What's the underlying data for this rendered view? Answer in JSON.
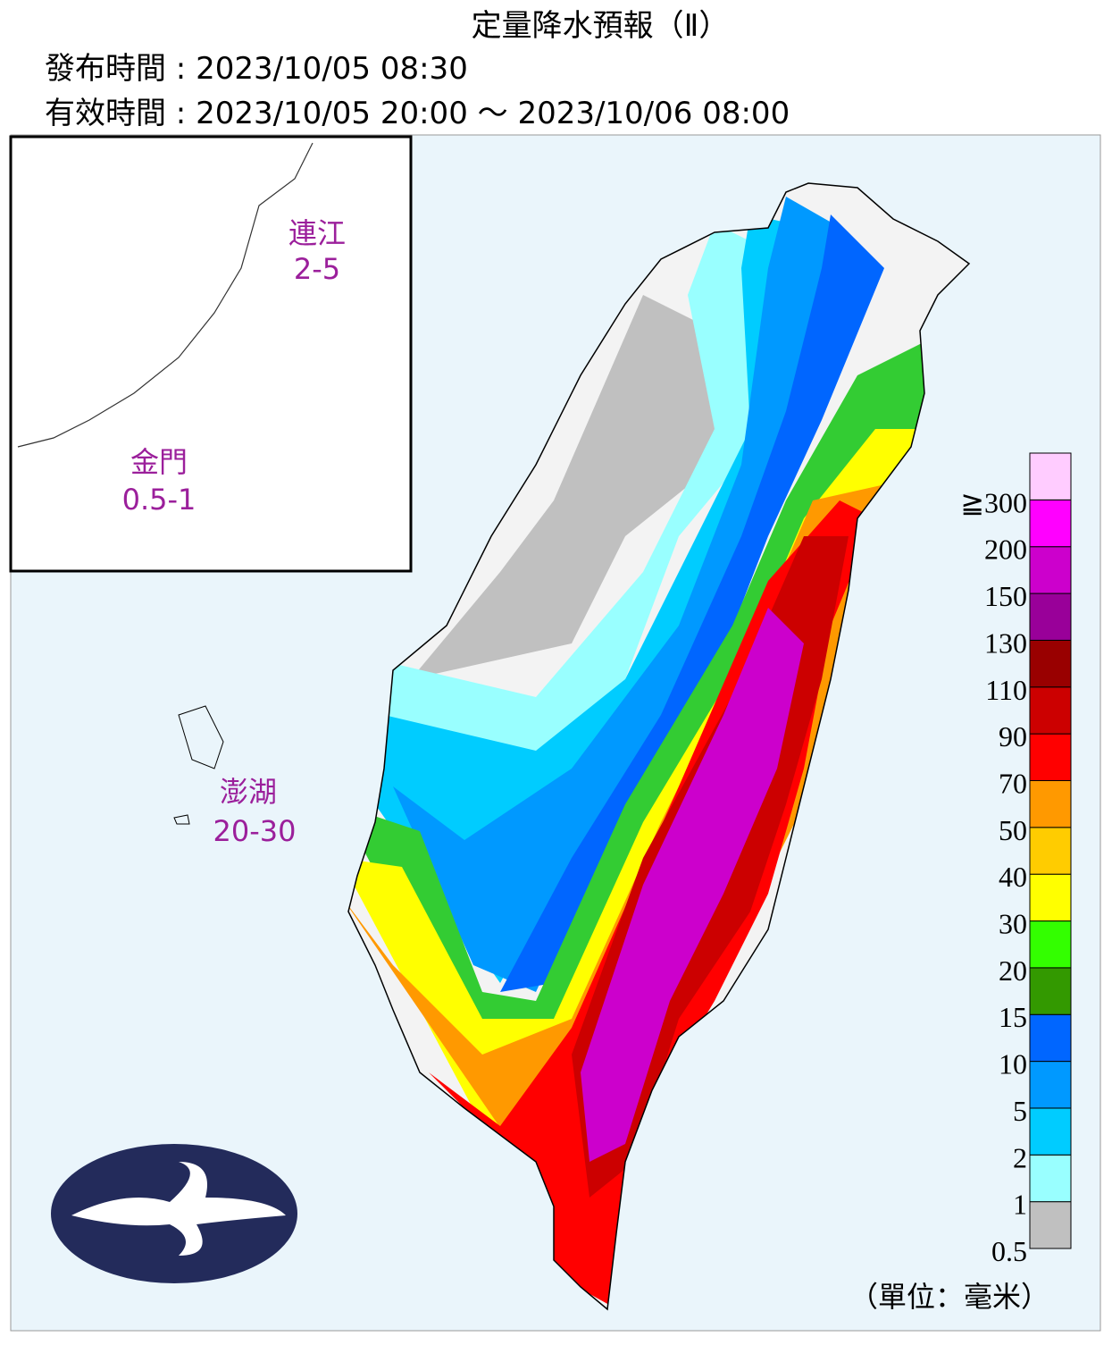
{
  "header": {
    "title": "定量降水預報（Ⅱ）",
    "issued": "發布時間 : 2023/10/05 08:30",
    "valid": "有效時間 : 2023/10/05 20:00 ～ 2023/10/06 08:00"
  },
  "inset": {
    "labels": [
      {
        "name": "連江",
        "value": "2-5"
      },
      {
        "name": "金門",
        "value": "0.5-1"
      }
    ]
  },
  "islands": {
    "name": "澎湖",
    "value": "20-30"
  },
  "legend": {
    "levels": [
      "0.5",
      "1",
      "2",
      "5",
      "10",
      "15",
      "20",
      "30",
      "40",
      "50",
      "70",
      "90",
      "110",
      "130",
      "150",
      "200",
      "≧300"
    ],
    "colors": [
      "#c0c0c0",
      "#99ffff",
      "#00ccff",
      "#0099ff",
      "#0066ff",
      "#339900",
      "#33ff00",
      "#ffff00",
      "#ffcc00",
      "#ff9900",
      "#ff0000",
      "#cc0000",
      "#990000",
      "#990099",
      "#cc00cc",
      "#ff00ff",
      "#ffccff"
    ],
    "unit": "（單位：毫米）"
  }
}
